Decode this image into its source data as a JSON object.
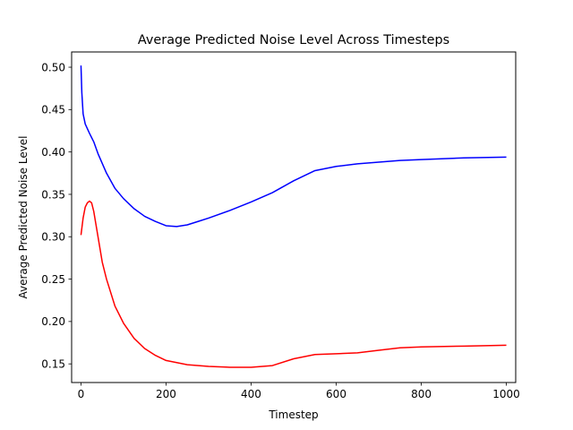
{
  "chart_data": {
    "type": "line",
    "title": "Average Predicted Noise Level Across Timesteps",
    "xlabel": "Timestep",
    "ylabel": "Average Predicted Noise Level",
    "xlim": [
      -22,
      1022
    ],
    "ylim": [
      0.128,
      0.518
    ],
    "xticks": [
      0,
      200,
      400,
      600,
      800,
      1000
    ],
    "yticks": [
      0.15,
      0.2,
      0.25,
      0.3,
      0.35,
      0.4,
      0.45,
      0.5
    ],
    "grid": false,
    "legend": "none",
    "series": [
      {
        "color": "#0000ff",
        "x": [
          0,
          2,
          5,
          10,
          20,
          30,
          40,
          60,
          80,
          100,
          125,
          150,
          175,
          200,
          225,
          250,
          275,
          300,
          350,
          400,
          450,
          500,
          550,
          600,
          650,
          700,
          750,
          800,
          900,
          1000
        ],
        "y": [
          0.502,
          0.47,
          0.445,
          0.433,
          0.422,
          0.412,
          0.398,
          0.375,
          0.357,
          0.345,
          0.333,
          0.324,
          0.318,
          0.313,
          0.312,
          0.314,
          0.318,
          0.322,
          0.331,
          0.341,
          0.352,
          0.366,
          0.378,
          0.383,
          0.386,
          0.388,
          0.39,
          0.391,
          0.393,
          0.394
        ]
      },
      {
        "color": "#ff0000",
        "x": [
          0,
          5,
          10,
          15,
          20,
          25,
          30,
          40,
          50,
          60,
          80,
          100,
          125,
          150,
          175,
          200,
          250,
          300,
          350,
          400,
          450,
          500,
          550,
          600,
          650,
          700,
          750,
          800,
          900,
          1000
        ],
        "y": [
          0.302,
          0.322,
          0.335,
          0.34,
          0.342,
          0.34,
          0.33,
          0.3,
          0.27,
          0.25,
          0.218,
          0.198,
          0.18,
          0.168,
          0.16,
          0.154,
          0.149,
          0.147,
          0.146,
          0.146,
          0.148,
          0.156,
          0.161,
          0.162,
          0.163,
          0.166,
          0.169,
          0.17,
          0.171,
          0.172
        ]
      }
    ]
  }
}
